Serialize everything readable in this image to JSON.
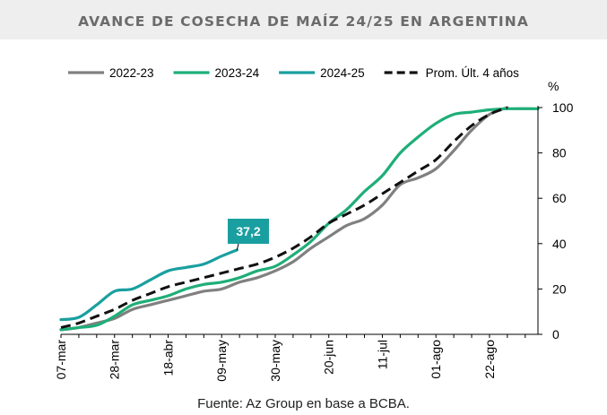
{
  "title": "AVANCE DE COSECHA DE MAÍZ 24/25 EN ARGENTINA",
  "source": "Fuente: Az Group en base a BCBA.",
  "colors": {
    "2022-23": "#808080",
    "2023-24": "#1fae78",
    "2024-25": "#1a9fa0",
    "prom": "#111111",
    "callout_bg": "#1a9fa0",
    "title_bg": "#eeeeee"
  },
  "chart_data": {
    "type": "line",
    "title": "AVANCE DE COSECHA DE MAÍZ 24/25 EN ARGENTINA",
    "xlabel": "",
    "ylabel": "%",
    "ylim": [
      0,
      100
    ],
    "yticks": [
      0,
      20,
      40,
      60,
      80,
      100
    ],
    "x_range": [
      "2025-03-07",
      "2025-09-10"
    ],
    "xtick_labels": [
      "07-mar",
      "28-mar",
      "18-abr",
      "09-may",
      "30-may",
      "20-jun",
      "11-jul",
      "01-ago",
      "22-ago"
    ],
    "legend_position": "top",
    "grid": false,
    "annotation": {
      "label": "37,2",
      "series": "2024-25",
      "x": "2025-05-15",
      "y": 37.2
    },
    "series": [
      {
        "name": "2022-23",
        "style": "solid",
        "points": [
          [
            "2025-03-07",
            2
          ],
          [
            "2025-03-14",
            3
          ],
          [
            "2025-03-21",
            5
          ],
          [
            "2025-03-28",
            7
          ],
          [
            "2025-04-04",
            11
          ],
          [
            "2025-04-11",
            13
          ],
          [
            "2025-04-18",
            15
          ],
          [
            "2025-04-25",
            17
          ],
          [
            "2025-05-02",
            19
          ],
          [
            "2025-05-09",
            20
          ],
          [
            "2025-05-16",
            23
          ],
          [
            "2025-05-23",
            25
          ],
          [
            "2025-05-30",
            28
          ],
          [
            "2025-06-06",
            32
          ],
          [
            "2025-06-13",
            38
          ],
          [
            "2025-06-20",
            43
          ],
          [
            "2025-06-27",
            48
          ],
          [
            "2025-07-04",
            51
          ],
          [
            "2025-07-11",
            57
          ],
          [
            "2025-07-18",
            66
          ],
          [
            "2025-07-25",
            69
          ],
          [
            "2025-08-01",
            73
          ],
          [
            "2025-08-08",
            81
          ],
          [
            "2025-08-15",
            90
          ],
          [
            "2025-08-22",
            97
          ],
          [
            "2025-08-29",
            100
          ]
        ]
      },
      {
        "name": "2023-24",
        "style": "solid",
        "points": [
          [
            "2025-03-07",
            2
          ],
          [
            "2025-03-14",
            3
          ],
          [
            "2025-03-21",
            4
          ],
          [
            "2025-03-28",
            8
          ],
          [
            "2025-04-04",
            13
          ],
          [
            "2025-04-11",
            15
          ],
          [
            "2025-04-18",
            17
          ],
          [
            "2025-04-25",
            20
          ],
          [
            "2025-05-02",
            22
          ],
          [
            "2025-05-09",
            23
          ],
          [
            "2025-05-16",
            25
          ],
          [
            "2025-05-23",
            28
          ],
          [
            "2025-05-30",
            30
          ],
          [
            "2025-06-06",
            35
          ],
          [
            "2025-06-13",
            41
          ],
          [
            "2025-06-20",
            49
          ],
          [
            "2025-06-27",
            55
          ],
          [
            "2025-07-04",
            63
          ],
          [
            "2025-07-11",
            70
          ],
          [
            "2025-07-18",
            80
          ],
          [
            "2025-07-25",
            87
          ],
          [
            "2025-08-01",
            93
          ],
          [
            "2025-08-08",
            97
          ],
          [
            "2025-08-15",
            98
          ],
          [
            "2025-08-22",
            99
          ],
          [
            "2025-08-29",
            99.5
          ],
          [
            "2025-09-10",
            99.5
          ]
        ]
      },
      {
        "name": "2024-25",
        "style": "solid",
        "points": [
          [
            "2025-03-07",
            6.5
          ],
          [
            "2025-03-14",
            7.5
          ],
          [
            "2025-03-21",
            13
          ],
          [
            "2025-03-28",
            19
          ],
          [
            "2025-04-04",
            20
          ],
          [
            "2025-04-11",
            24
          ],
          [
            "2025-04-18",
            28
          ],
          [
            "2025-04-25",
            29.5
          ],
          [
            "2025-05-02",
            31
          ],
          [
            "2025-05-09",
            34.5
          ],
          [
            "2025-05-15",
            37.2
          ]
        ]
      },
      {
        "name": "Prom. Últ. 4 años",
        "style": "dashed",
        "points": [
          [
            "2025-03-07",
            3
          ],
          [
            "2025-03-14",
            5
          ],
          [
            "2025-03-21",
            8
          ],
          [
            "2025-03-28",
            11
          ],
          [
            "2025-04-04",
            15
          ],
          [
            "2025-04-11",
            18
          ],
          [
            "2025-04-18",
            21
          ],
          [
            "2025-04-25",
            23
          ],
          [
            "2025-05-02",
            25
          ],
          [
            "2025-05-09",
            27
          ],
          [
            "2025-05-16",
            29
          ],
          [
            "2025-05-23",
            31
          ],
          [
            "2025-05-30",
            34
          ],
          [
            "2025-06-06",
            38
          ],
          [
            "2025-06-13",
            43
          ],
          [
            "2025-06-20",
            49
          ],
          [
            "2025-06-27",
            53
          ],
          [
            "2025-07-04",
            57
          ],
          [
            "2025-07-11",
            62
          ],
          [
            "2025-07-18",
            67
          ],
          [
            "2025-07-25",
            72
          ],
          [
            "2025-08-01",
            77
          ],
          [
            "2025-08-08",
            85
          ],
          [
            "2025-08-15",
            92
          ],
          [
            "2025-08-22",
            97
          ],
          [
            "2025-08-29",
            100
          ]
        ]
      }
    ]
  }
}
